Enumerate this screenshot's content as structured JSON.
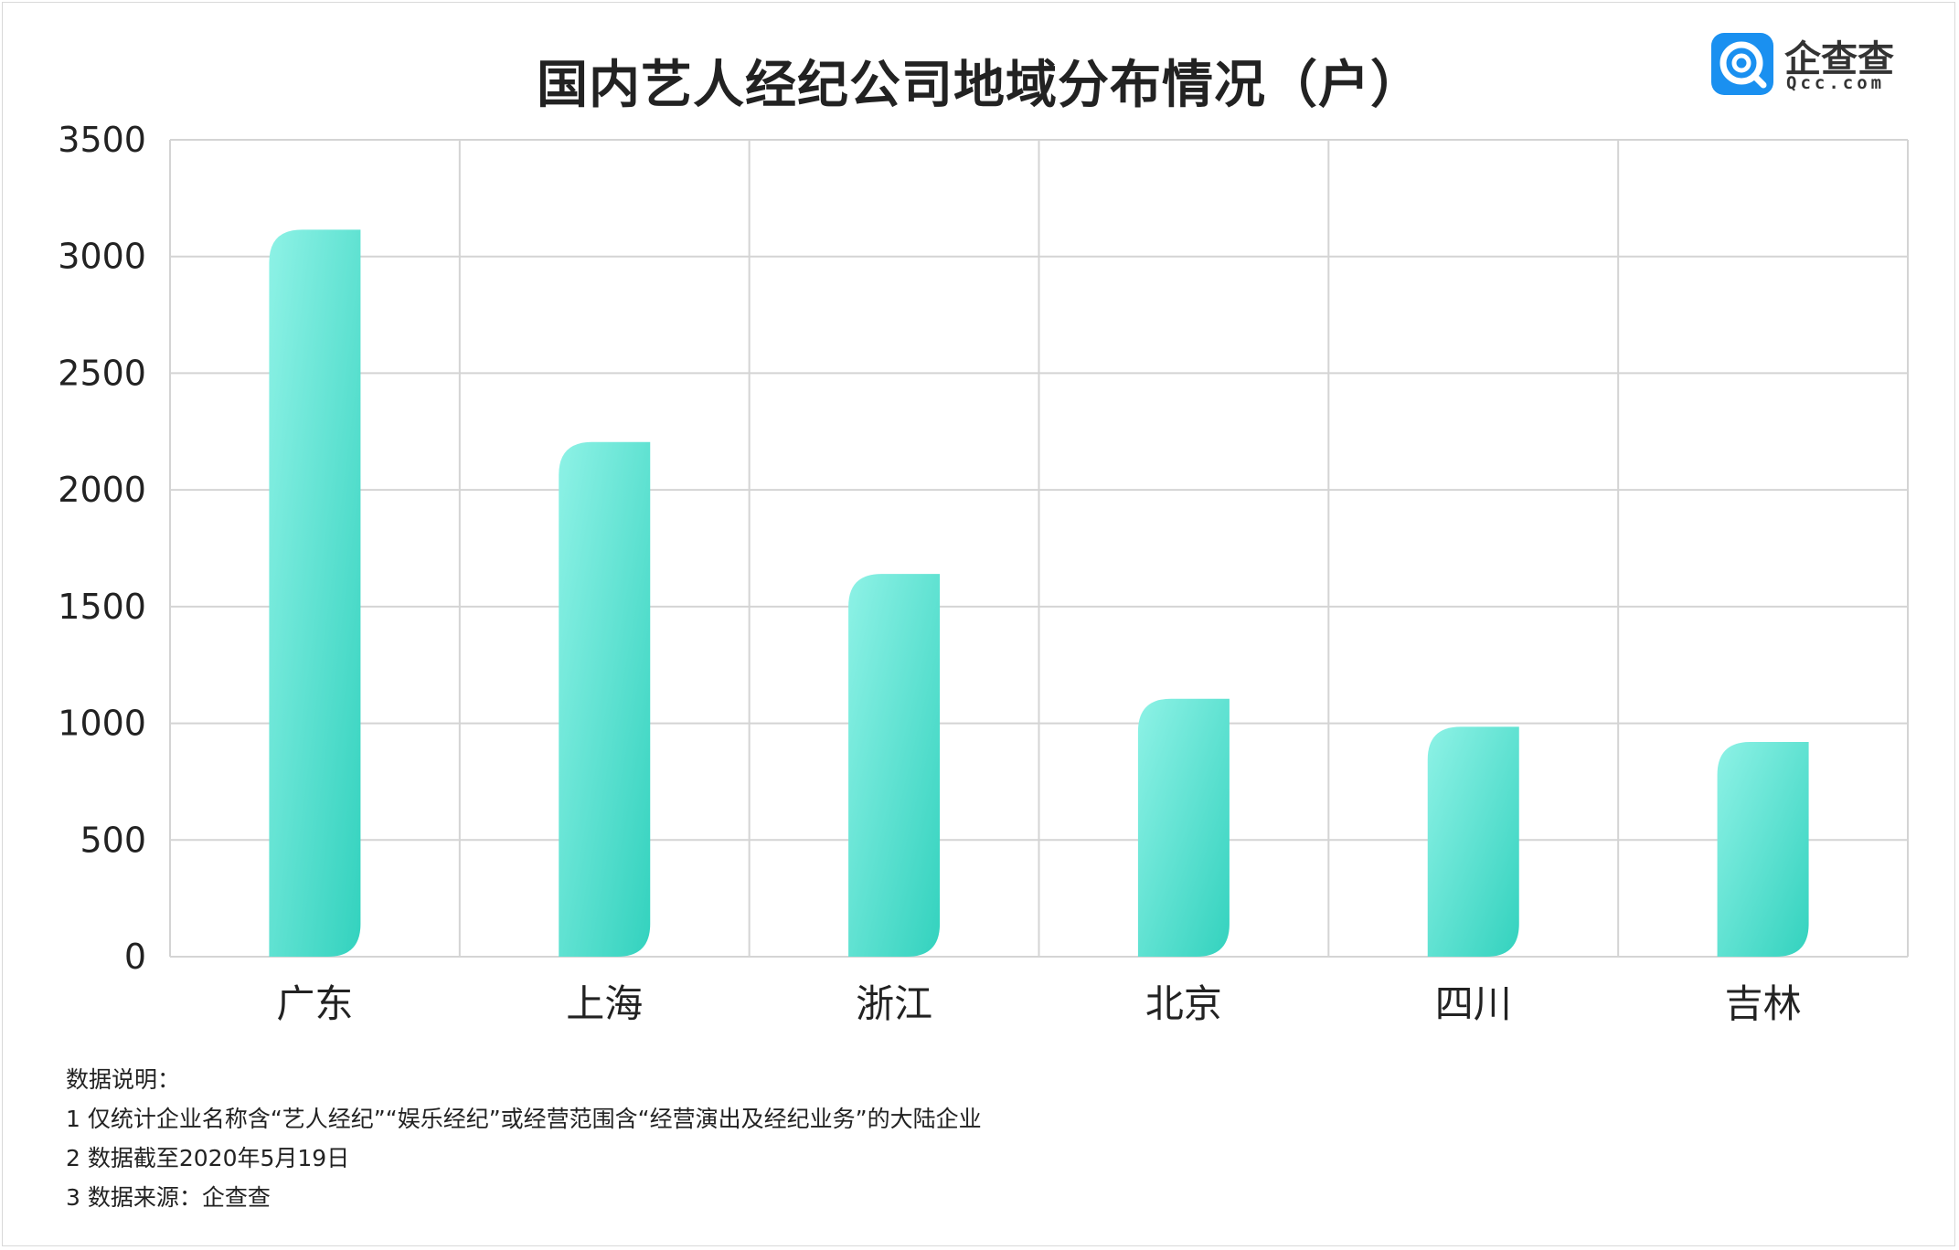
{
  "title": "国内艺人经纪公司地域分布情况（户）",
  "logo": {
    "name": "企查查",
    "domain": "Qcc.com",
    "color": "#1a90f0",
    "icon": "qcc-logo-icon"
  },
  "notes": {
    "heading": "数据说明：",
    "items": [
      "1 仅统计企业名称含“艺人经纪”“娱乐经纪”或经营范围含“经营演出及经纪业务”的大陆企业",
      "2 数据截至2020年5月19日",
      "3 数据来源：企查查"
    ]
  },
  "chart_data": {
    "type": "bar",
    "title": "国内艺人经纪公司地域分布情况（户）",
    "categories": [
      "广东",
      "上海",
      "浙江",
      "北京",
      "四川",
      "吉林"
    ],
    "values": [
      3115,
      2205,
      1640,
      1105,
      985,
      920
    ],
    "ylim": [
      0,
      3500
    ],
    "yticks": [
      "0",
      "500",
      "1000",
      "1500",
      "2000",
      "2500",
      "3000",
      "3500"
    ],
    "xlabel": "",
    "ylabel": "",
    "grid": true,
    "colors": {
      "bar_top": "#8ef2e6",
      "bar_bottom": "#33d2be",
      "grid": "#d4d4d4"
    }
  }
}
